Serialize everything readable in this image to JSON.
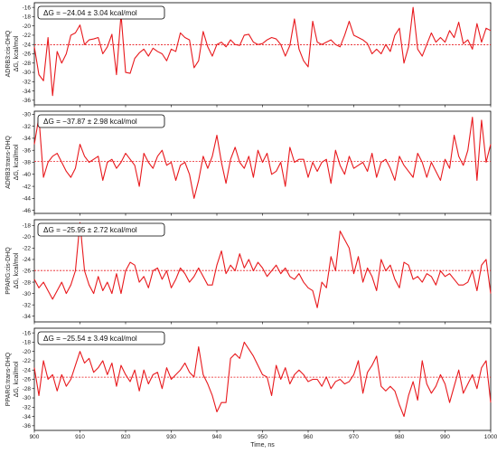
{
  "figure": {
    "xlabel": "Time, ns",
    "ylabel": "ΔG, kcal/mol",
    "xlim": [
      900,
      1000
    ],
    "x_ticks": [
      900,
      910,
      920,
      930,
      940,
      950,
      960,
      970,
      980,
      990,
      1000
    ]
  },
  "chart_data": [
    {
      "type": "line",
      "row_label": "ADRB3:cis-DHQ",
      "ylabel": "ΔG, kcal/mol",
      "annotation": "ΔG = −24.04 ± 3.04 kcal/mol",
      "mean": -24.04,
      "ylim": [
        -37,
        -15
      ],
      "y_ticks": [
        -36,
        -34,
        -32,
        -30,
        -28,
        -26,
        -24,
        -22,
        -20,
        -18,
        -16
      ],
      "line_color": "#e8191d",
      "mean_color": "#e8191d",
      "series": [
        {
          "x": [
            900,
            901,
            902,
            903,
            904,
            905,
            906,
            907,
            908,
            909,
            910,
            911,
            912,
            913,
            914,
            915,
            916,
            917,
            918,
            919,
            920,
            921,
            922,
            923,
            924,
            925,
            926,
            927,
            928,
            929,
            930,
            931,
            932,
            933,
            934,
            935,
            936,
            937,
            938,
            939,
            940,
            941,
            942,
            943,
            944,
            945,
            946,
            947,
            948,
            949,
            950,
            951,
            952,
            953,
            954,
            955,
            956,
            957,
            958,
            959,
            960,
            961,
            962,
            963,
            964,
            965,
            966,
            967,
            968,
            969,
            970,
            971,
            972,
            973,
            974,
            975,
            976,
            977,
            978,
            979,
            980,
            981,
            982,
            983,
            984,
            985,
            986,
            987,
            988,
            989,
            990,
            991,
            992,
            993,
            994,
            995,
            996,
            997,
            998,
            999,
            1000
          ],
          "values": [
            -24.5,
            -30.5,
            -31.8,
            -22.5,
            -35.0,
            -25.5,
            -28.0,
            -26.0,
            -22.0,
            -21.5,
            -19.8,
            -24.0,
            -23.0,
            -22.8,
            -22.5,
            -26.0,
            -24.5,
            -21.8,
            -30.5,
            -17.5,
            -30.0,
            -30.2,
            -27.0,
            -25.8,
            -25.0,
            -26.5,
            -24.8,
            -25.5,
            -26.0,
            -27.5,
            -25.0,
            -25.5,
            -21.5,
            -22.5,
            -23.0,
            -29.0,
            -27.5,
            -21.2,
            -24.5,
            -26.5,
            -24.0,
            -23.5,
            -24.5,
            -23.0,
            -24.0,
            -24.2,
            -22.0,
            -21.8,
            -23.5,
            -24.0,
            -23.8,
            -23.0,
            -22.5,
            -22.8,
            -24.0,
            -26.5,
            -24.2,
            -18.5,
            -25.0,
            -27.5,
            -28.8,
            -19.0,
            -23.5,
            -24.0,
            -23.5,
            -23.0,
            -24.0,
            -24.5,
            -22.0,
            -19.0,
            -22.0,
            -22.5,
            -23.0,
            -23.8,
            -26.0,
            -25.0,
            -26.0,
            -24.0,
            -25.5,
            -22.0,
            -20.5,
            -28.0,
            -24.5,
            -16.0,
            -25.0,
            -26.5,
            -24.0,
            -21.5,
            -23.5,
            -22.5,
            -23.5,
            -21.0,
            -22.5,
            -19.2,
            -23.8,
            -23.0,
            -25.0,
            -19.5,
            -23.5,
            -20.5,
            -21.0
          ]
        }
      ]
    },
    {
      "type": "line",
      "row_label": "ADRB3:trans-DHQ",
      "ylabel": "ΔG, kcal/mol",
      "annotation": "ΔG = −37.87 ± 2.98 kcal/mol",
      "mean": -37.87,
      "ylim": [
        -46.5,
        -29.5
      ],
      "y_ticks": [
        -46,
        -44,
        -42,
        -40,
        -38,
        -36,
        -34,
        -32,
        -30
      ],
      "line_color": "#e8191d",
      "mean_color": "#e8191d",
      "series": [
        {
          "x": [
            900,
            901,
            902,
            903,
            904,
            905,
            906,
            907,
            908,
            909,
            910,
            911,
            912,
            913,
            914,
            915,
            916,
            917,
            918,
            919,
            920,
            921,
            922,
            923,
            924,
            925,
            926,
            927,
            928,
            929,
            930,
            931,
            932,
            933,
            934,
            935,
            936,
            937,
            938,
            939,
            940,
            941,
            942,
            943,
            944,
            945,
            946,
            947,
            948,
            949,
            950,
            951,
            952,
            953,
            954,
            955,
            956,
            957,
            958,
            959,
            960,
            961,
            962,
            963,
            964,
            965,
            966,
            967,
            968,
            969,
            970,
            971,
            972,
            973,
            974,
            975,
            976,
            977,
            978,
            979,
            980,
            981,
            982,
            983,
            984,
            985,
            986,
            987,
            988,
            989,
            990,
            991,
            992,
            993,
            994,
            995,
            996,
            997,
            998,
            999,
            1000
          ],
          "values": [
            -35.0,
            -30.5,
            -40.5,
            -38.0,
            -37.0,
            -36.5,
            -38.0,
            -39.5,
            -40.5,
            -39.0,
            -35.0,
            -37.0,
            -38.0,
            -37.5,
            -37.0,
            -41.0,
            -38.0,
            -37.5,
            -39.0,
            -38.0,
            -36.5,
            -37.5,
            -38.5,
            -42.0,
            -36.5,
            -38.0,
            -39.0,
            -37.0,
            -36.0,
            -38.5,
            -38.0,
            -41.0,
            -38.5,
            -38.0,
            -40.0,
            -44.0,
            -41.0,
            -37.0,
            -39.0,
            -37.0,
            -33.5,
            -38.0,
            -41.5,
            -37.5,
            -35.5,
            -38.0,
            -39.0,
            -37.0,
            -40.5,
            -36.0,
            -38.0,
            -36.5,
            -40.0,
            -39.5,
            -38.0,
            -42.0,
            -35.5,
            -38.0,
            -37.5,
            -37.5,
            -40.5,
            -38.0,
            -39.5,
            -38.0,
            -37.5,
            -41.5,
            -36.0,
            -38.5,
            -40.0,
            -37.0,
            -39.0,
            -38.5,
            -38.0,
            -39.5,
            -36.5,
            -40.5,
            -38.0,
            -37.5,
            -39.0,
            -41.0,
            -37.0,
            -38.5,
            -39.5,
            -40.5,
            -36.5,
            -38.0,
            -40.5,
            -38.0,
            -39.5,
            -41.0,
            -37.5,
            -39.0,
            -33.5,
            -37.0,
            -38.5,
            -36.0,
            -30.5,
            -41.0,
            -31.0,
            -38.0,
            -35.0
          ]
        }
      ]
    },
    {
      "type": "line",
      "row_label": "PPARG:cis-DHQ",
      "ylabel": "ΔG, kcal/mol",
      "annotation": "ΔG = −25.95 ± 2.72 kcal/mol",
      "mean": -25.95,
      "ylim": [
        -35,
        -17
      ],
      "y_ticks": [
        -34,
        -32,
        -30,
        -28,
        -26,
        -24,
        -22,
        -20,
        -18
      ],
      "line_color": "#e8191d",
      "mean_color": "#e8191d",
      "series": [
        {
          "x": [
            900,
            901,
            902,
            903,
            904,
            905,
            906,
            907,
            908,
            909,
            910,
            911,
            912,
            913,
            914,
            915,
            916,
            917,
            918,
            919,
            920,
            921,
            922,
            923,
            924,
            925,
            926,
            927,
            928,
            929,
            930,
            931,
            932,
            933,
            934,
            935,
            936,
            937,
            938,
            939,
            940,
            941,
            942,
            943,
            944,
            945,
            946,
            947,
            948,
            949,
            950,
            951,
            952,
            953,
            954,
            955,
            956,
            957,
            958,
            959,
            960,
            961,
            962,
            963,
            964,
            965,
            966,
            967,
            968,
            969,
            970,
            971,
            972,
            973,
            974,
            975,
            976,
            977,
            978,
            979,
            980,
            981,
            982,
            983,
            984,
            985,
            986,
            987,
            988,
            989,
            990,
            991,
            992,
            993,
            994,
            995,
            996,
            997,
            998,
            999,
            1000
          ],
          "values": [
            -27.5,
            -29.0,
            -28.0,
            -29.5,
            -31.0,
            -29.5,
            -28.0,
            -30.0,
            -28.5,
            -26.0,
            -17.5,
            -26.0,
            -28.5,
            -30.0,
            -27.0,
            -29.5,
            -28.0,
            -30.0,
            -26.5,
            -30.0,
            -26.0,
            -24.5,
            -25.0,
            -28.0,
            -27.0,
            -29.0,
            -26.0,
            -25.5,
            -27.5,
            -26.0,
            -29.0,
            -27.5,
            -25.5,
            -26.5,
            -28.0,
            -27.0,
            -25.5,
            -27.0,
            -28.5,
            -28.5,
            -25.0,
            -22.5,
            -26.5,
            -25.0,
            -26.0,
            -23.0,
            -25.5,
            -24.0,
            -26.0,
            -24.5,
            -25.5,
            -27.0,
            -26.0,
            -25.0,
            -26.5,
            -25.5,
            -27.0,
            -27.5,
            -26.5,
            -28.0,
            -29.0,
            -29.5,
            -32.5,
            -28.0,
            -29.0,
            -23.5,
            -26.0,
            -19.0,
            -20.5,
            -22.0,
            -26.5,
            -23.5,
            -28.0,
            -25.5,
            -27.0,
            -29.5,
            -24.0,
            -26.0,
            -25.0,
            -27.5,
            -29.0,
            -24.5,
            -25.0,
            -27.5,
            -27.0,
            -28.0,
            -26.5,
            -27.0,
            -28.5,
            -26.0,
            -27.0,
            -26.5,
            -27.5,
            -28.5,
            -28.5,
            -28.0,
            -26.0,
            -29.5,
            -25.0,
            -24.0,
            -30.0
          ]
        }
      ]
    },
    {
      "type": "line",
      "row_label": "PPARG:trans-DHQ",
      "ylabel": "ΔG, kcal/mol",
      "annotation": "ΔG = −25.54 ± 3.49 kcal/mol",
      "mean": -25.54,
      "ylim": [
        -37,
        -15
      ],
      "y_ticks": [
        -36,
        -34,
        -32,
        -30,
        -28,
        -26,
        -24,
        -22,
        -20,
        -18,
        -16
      ],
      "line_color": "#e8191d",
      "mean_color": "#e8191d",
      "series": [
        {
          "x": [
            900,
            901,
            902,
            903,
            904,
            905,
            906,
            907,
            908,
            909,
            910,
            911,
            912,
            913,
            914,
            915,
            916,
            917,
            918,
            919,
            920,
            921,
            922,
            923,
            924,
            925,
            926,
            927,
            928,
            929,
            930,
            931,
            932,
            933,
            934,
            935,
            936,
            937,
            938,
            939,
            940,
            941,
            942,
            943,
            944,
            945,
            946,
            947,
            948,
            949,
            950,
            951,
            952,
            953,
            954,
            955,
            956,
            957,
            958,
            959,
            960,
            961,
            962,
            963,
            964,
            965,
            966,
            967,
            968,
            969,
            970,
            971,
            972,
            973,
            974,
            975,
            976,
            977,
            978,
            979,
            980,
            981,
            982,
            983,
            984,
            985,
            986,
            987,
            988,
            989,
            990,
            991,
            992,
            993,
            994,
            995,
            996,
            997,
            998,
            999,
            1000
          ],
          "values": [
            -23.5,
            -29.5,
            -22.0,
            -26.0,
            -25.0,
            -28.5,
            -25.0,
            -27.5,
            -26.0,
            -23.0,
            -20.0,
            -22.5,
            -21.5,
            -24.5,
            -23.5,
            -22.0,
            -25.0,
            -22.5,
            -27.5,
            -23.0,
            -25.0,
            -26.5,
            -24.0,
            -28.5,
            -24.0,
            -27.0,
            -25.0,
            -24.5,
            -28.0,
            -23.5,
            -26.0,
            -25.0,
            -24.0,
            -22.5,
            -24.5,
            -25.5,
            -19.0,
            -25.0,
            -27.0,
            -29.5,
            -33.0,
            -31.0,
            -31.0,
            -21.5,
            -20.5,
            -21.5,
            -18.0,
            -19.5,
            -21.0,
            -23.0,
            -25.0,
            -25.5,
            -29.5,
            -23.0,
            -26.0,
            -23.5,
            -27.0,
            -25.0,
            -24.0,
            -25.0,
            -26.5,
            -26.0,
            -26.0,
            -27.5,
            -25.5,
            -28.0,
            -26.5,
            -26.0,
            -27.0,
            -26.5,
            -25.0,
            -22.0,
            -29.0,
            -24.5,
            -23.0,
            -21.0,
            -27.5,
            -28.5,
            -27.5,
            -28.5,
            -31.5,
            -34.0,
            -29.5,
            -26.5,
            -30.5,
            -22.0,
            -27.0,
            -29.0,
            -27.5,
            -25.0,
            -27.0,
            -31.0,
            -27.5,
            -24.0,
            -29.0,
            -27.0,
            -25.0,
            -28.0,
            -23.5,
            -22.0,
            -31.0
          ]
        }
      ]
    }
  ]
}
